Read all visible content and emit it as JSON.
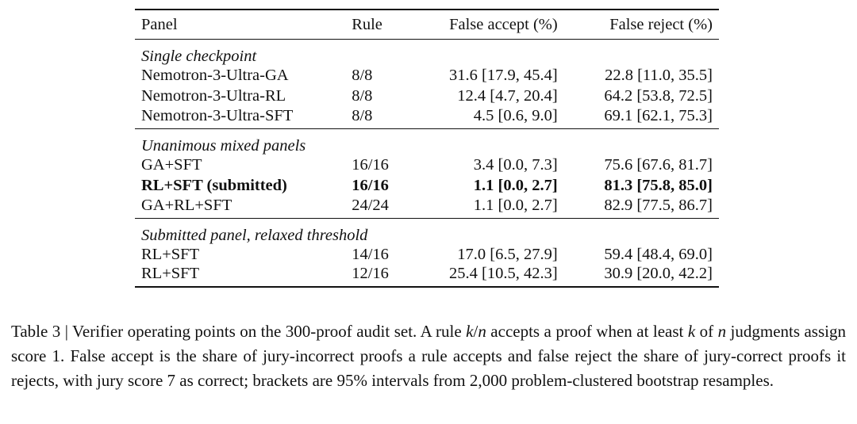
{
  "table": {
    "header": [
      "Panel",
      "Rule",
      "False accept (%)",
      "False reject (%)"
    ],
    "groups": [
      {
        "title": "Single checkpoint",
        "rows": [
          [
            "Nemotron-3-Ultra-GA",
            "8/8",
            "31.6 [17.9, 45.4]",
            "22.8 [11.0, 35.5]"
          ],
          [
            "Nemotron-3-Ultra-RL",
            "8/8",
            "12.4 [4.7, 20.4]",
            "64.2 [53.8, 72.5]"
          ],
          [
            "Nemotron-3-Ultra-SFT",
            "8/8",
            "4.5 [0.6, 9.0]",
            "69.1 [62.1, 75.3]"
          ]
        ]
      },
      {
        "title": "Unanimous mixed panels",
        "rows": [
          [
            "GA+SFT",
            "16/16",
            "3.4 [0.0, 7.3]",
            "75.6 [67.6, 81.7]"
          ],
          [
            "RL+SFT (submitted)",
            "16/16",
            "1.1 [0.0, 2.7]",
            "81.3 [75.8, 85.0]"
          ],
          [
            "GA+RL+SFT",
            "24/24",
            "1.1 [0.0, 2.7]",
            "82.9 [77.5, 86.7]"
          ]
        ]
      },
      {
        "title": "Submitted panel, relaxed threshold",
        "rows": [
          [
            "RL+SFT",
            "14/16",
            "17.0 [6.5, 27.9]",
            "59.4 [48.4, 69.0]"
          ],
          [
            "RL+SFT",
            "12/16",
            "25.4 [10.5, 42.3]",
            "30.9 [20.0, 42.2]"
          ]
        ]
      }
    ]
  },
  "caption": {
    "parts": [
      "Table 3 | Verifier operating points on the 300-proof audit set. A rule ",
      "k",
      "/",
      "n",
      " accepts a proof when at least ",
      "k",
      " of ",
      "n",
      " judgments assign score 1. False accept is the share of jury-incorrect proofs a rule accepts and false reject the share of jury-correct proofs it rejects, with jury score 7 as correct; brackets are 95% intervals from 2,000 problem-clustered bootstrap resamples."
    ]
  }
}
